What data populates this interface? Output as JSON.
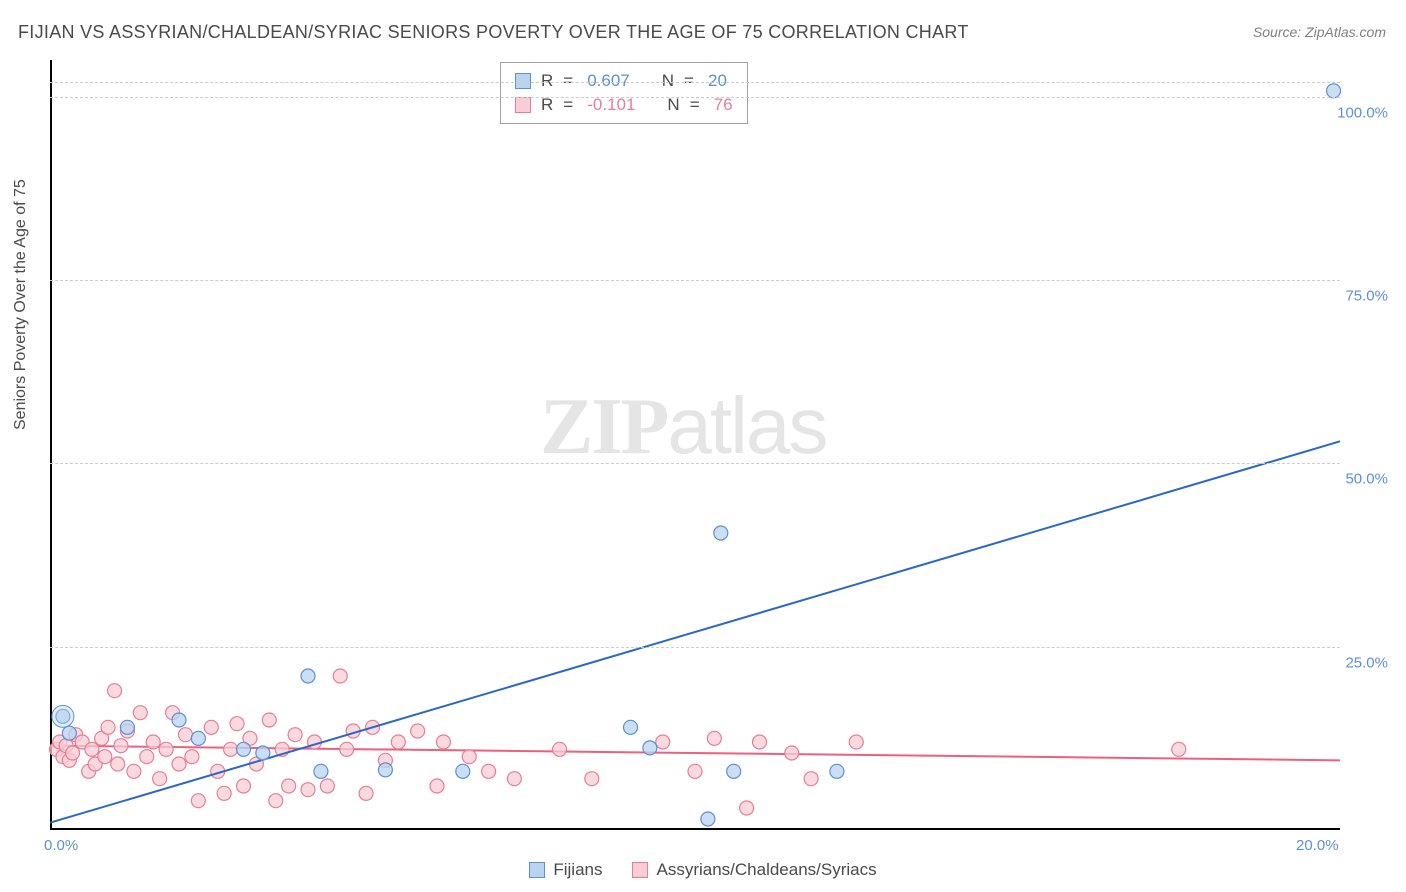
{
  "title": "FIJIAN VS ASSYRIAN/CHALDEAN/SYRIAC SENIORS POVERTY OVER THE AGE OF 75 CORRELATION CHART",
  "source": "Source: ZipAtlas.com",
  "ylabel": "Seniors Poverty Over the Age of 75",
  "watermark_a": "ZIP",
  "watermark_b": "atlas",
  "chart": {
    "type": "scatter",
    "xlim": [
      0,
      20
    ],
    "ylim": [
      0,
      105
    ],
    "yticks": [
      25,
      50,
      75,
      100
    ],
    "ytick_labels": [
      "25.0%",
      "50.0%",
      "75.0%",
      "100.0%"
    ],
    "xticks": [
      0,
      20
    ],
    "xtick_labels": [
      "0.0%",
      "20.0%"
    ],
    "grid_color": "#cccccc",
    "axis_color": "#000000",
    "background": "#ffffff",
    "watermark_color": "#d0d0d0"
  },
  "series": {
    "fijians": {
      "label": "Fijians",
      "color_fill": "#b8d4f0",
      "color_stroke": "#5b8fd9",
      "line_color": "#2968c8",
      "marker_radius": 7,
      "R": "0.607",
      "N": "20",
      "points": [
        [
          0.2,
          15.5
        ],
        [
          0.3,
          13.2
        ],
        [
          1.2,
          14.0
        ],
        [
          2.0,
          15.0
        ],
        [
          2.3,
          12.5
        ],
        [
          3.0,
          11.0
        ],
        [
          3.3,
          10.5
        ],
        [
          4.0,
          21.0
        ],
        [
          4.2,
          8.0
        ],
        [
          5.2,
          8.2
        ],
        [
          6.4,
          8.0
        ],
        [
          9.0,
          14.0
        ],
        [
          9.3,
          11.2
        ],
        [
          10.2,
          1.5
        ],
        [
          10.4,
          40.5
        ],
        [
          10.6,
          8.0
        ],
        [
          12.2,
          8.0
        ],
        [
          19.9,
          100.8
        ]
      ],
      "trend": {
        "x1": 0,
        "y1": 1,
        "x2": 20,
        "y2": 53
      }
    },
    "acs": {
      "label": "Assyrians/Chaldeans/Syriacs",
      "color_fill": "#f8cdd6",
      "color_stroke": "#e97d94",
      "line_color": "#ed5f7d",
      "marker_radius": 7,
      "R": "-0.101",
      "N": "76",
      "points": [
        [
          0.1,
          11
        ],
        [
          0.15,
          12
        ],
        [
          0.2,
          10
        ],
        [
          0.25,
          11.5
        ],
        [
          0.3,
          9.5
        ],
        [
          0.35,
          10.5
        ],
        [
          0.4,
          13
        ],
        [
          0.5,
          12
        ],
        [
          0.6,
          8
        ],
        [
          0.65,
          11
        ],
        [
          0.7,
          9
        ],
        [
          0.8,
          12.5
        ],
        [
          0.85,
          10
        ],
        [
          0.9,
          14
        ],
        [
          1.0,
          19
        ],
        [
          1.05,
          9
        ],
        [
          1.1,
          11.5
        ],
        [
          1.2,
          13.5
        ],
        [
          1.3,
          8
        ],
        [
          1.4,
          16
        ],
        [
          1.5,
          10
        ],
        [
          1.6,
          12
        ],
        [
          1.7,
          7
        ],
        [
          1.8,
          11
        ],
        [
          1.9,
          16
        ],
        [
          2.0,
          9
        ],
        [
          2.1,
          13
        ],
        [
          2.2,
          10
        ],
        [
          2.3,
          4
        ],
        [
          2.5,
          14
        ],
        [
          2.6,
          8
        ],
        [
          2.7,
          5
        ],
        [
          2.8,
          11
        ],
        [
          2.9,
          14.5
        ],
        [
          3.0,
          6
        ],
        [
          3.1,
          12.5
        ],
        [
          3.2,
          9
        ],
        [
          3.4,
          15
        ],
        [
          3.5,
          4
        ],
        [
          3.6,
          11
        ],
        [
          3.7,
          6
        ],
        [
          3.8,
          13
        ],
        [
          4.0,
          5.5
        ],
        [
          4.1,
          12
        ],
        [
          4.3,
          6
        ],
        [
          4.5,
          21
        ],
        [
          4.6,
          11
        ],
        [
          4.7,
          13.5
        ],
        [
          4.9,
          5
        ],
        [
          5.0,
          14
        ],
        [
          5.2,
          9.5
        ],
        [
          5.4,
          12
        ],
        [
          5.7,
          13.5
        ],
        [
          6.0,
          6
        ],
        [
          6.1,
          12
        ],
        [
          6.5,
          10
        ],
        [
          6.8,
          8
        ],
        [
          7.2,
          7
        ],
        [
          7.9,
          11
        ],
        [
          8.4,
          7
        ],
        [
          9.5,
          12
        ],
        [
          10.0,
          8
        ],
        [
          10.3,
          12.5
        ],
        [
          10.8,
          3
        ],
        [
          11.0,
          12
        ],
        [
          11.5,
          10.5
        ],
        [
          11.8,
          7
        ],
        [
          12.5,
          12
        ],
        [
          17.5,
          11
        ]
      ],
      "trend": {
        "x1": 0,
        "y1": 11.5,
        "x2": 20,
        "y2": 9.5
      }
    }
  },
  "stats_labels": {
    "R": "R",
    "eq": "=",
    "N": "N"
  }
}
